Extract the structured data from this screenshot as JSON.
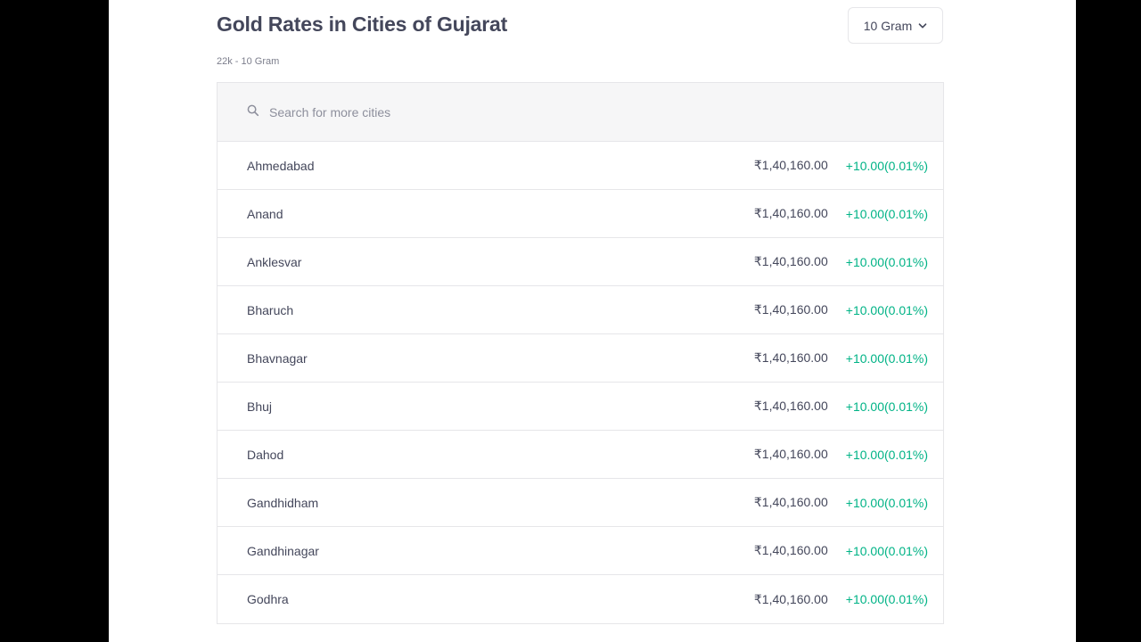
{
  "header": {
    "title": "Gold Rates in Cities of Gujarat",
    "subtitle": "22k - 10 Gram"
  },
  "unit_selector": {
    "selected": "10 Gram",
    "icon": "chevron-down-icon"
  },
  "search": {
    "placeholder": "Search for more cities",
    "value": "",
    "icon": "search-icon"
  },
  "cities": [
    {
      "name": "Ahmedabad",
      "price": "₹1,40,160.00",
      "change": "+10.00(0.01%)"
    },
    {
      "name": "Anand",
      "price": "₹1,40,160.00",
      "change": "+10.00(0.01%)"
    },
    {
      "name": "Anklesvar",
      "price": "₹1,40,160.00",
      "change": "+10.00(0.01%)"
    },
    {
      "name": "Bharuch",
      "price": "₹1,40,160.00",
      "change": "+10.00(0.01%)"
    },
    {
      "name": "Bhavnagar",
      "price": "₹1,40,160.00",
      "change": "+10.00(0.01%)"
    },
    {
      "name": "Bhuj",
      "price": "₹1,40,160.00",
      "change": "+10.00(0.01%)"
    },
    {
      "name": "Dahod",
      "price": "₹1,40,160.00",
      "change": "+10.00(0.01%)"
    },
    {
      "name": "Gandhidham",
      "price": "₹1,40,160.00",
      "change": "+10.00(0.01%)"
    },
    {
      "name": "Gandhinagar",
      "price": "₹1,40,160.00",
      "change": "+10.00(0.01%)"
    },
    {
      "name": "Godhra",
      "price": "₹1,40,160.00",
      "change": "+10.00(0.01%)"
    }
  ],
  "colors": {
    "text_primary": "#44475b",
    "text_secondary": "#7c7e8c",
    "positive_change": "#00b386",
    "border": "#e6e6e9",
    "search_background": "#f6f6f7"
  }
}
